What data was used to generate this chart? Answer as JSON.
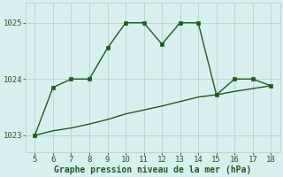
{
  "line1_x": [
    5,
    6,
    7,
    8,
    9,
    10,
    11,
    12,
    13,
    14,
    15,
    16,
    17,
    18
  ],
  "line1_y": [
    1023.0,
    1023.85,
    1024.0,
    1024.0,
    1024.55,
    1025.0,
    1025.0,
    1024.62,
    1025.0,
    1025.0,
    1023.72,
    1024.0,
    1024.0,
    1023.88
  ],
  "line2_x": [
    5,
    6,
    7,
    8,
    9,
    10,
    11,
    12,
    13,
    14,
    15,
    16,
    17,
    18
  ],
  "line2_y": [
    1023.0,
    1023.08,
    1023.13,
    1023.2,
    1023.28,
    1023.38,
    1023.45,
    1023.52,
    1023.6,
    1023.68,
    1023.72,
    1023.78,
    1023.83,
    1023.88
  ],
  "line_color": "#1e5c1e",
  "background_color": "#d8eff0",
  "grid_color": "#b8d8d0",
  "xlabel": "Graphe pression niveau de la mer (hPa)",
  "xlabel_color": "#1e5c1e",
  "tick_color": "#1e5c1e",
  "ylim": [
    1022.7,
    1025.35
  ],
  "xlim": [
    4.5,
    18.5
  ],
  "yticks": [
    1023,
    1024,
    1025
  ],
  "xticks": [
    5,
    6,
    7,
    8,
    9,
    10,
    11,
    12,
    13,
    14,
    15,
    16,
    17,
    18
  ],
  "markersize": 2.5,
  "linewidth": 1.0,
  "tick_fontsize": 6.5,
  "xlabel_fontsize": 7.0
}
